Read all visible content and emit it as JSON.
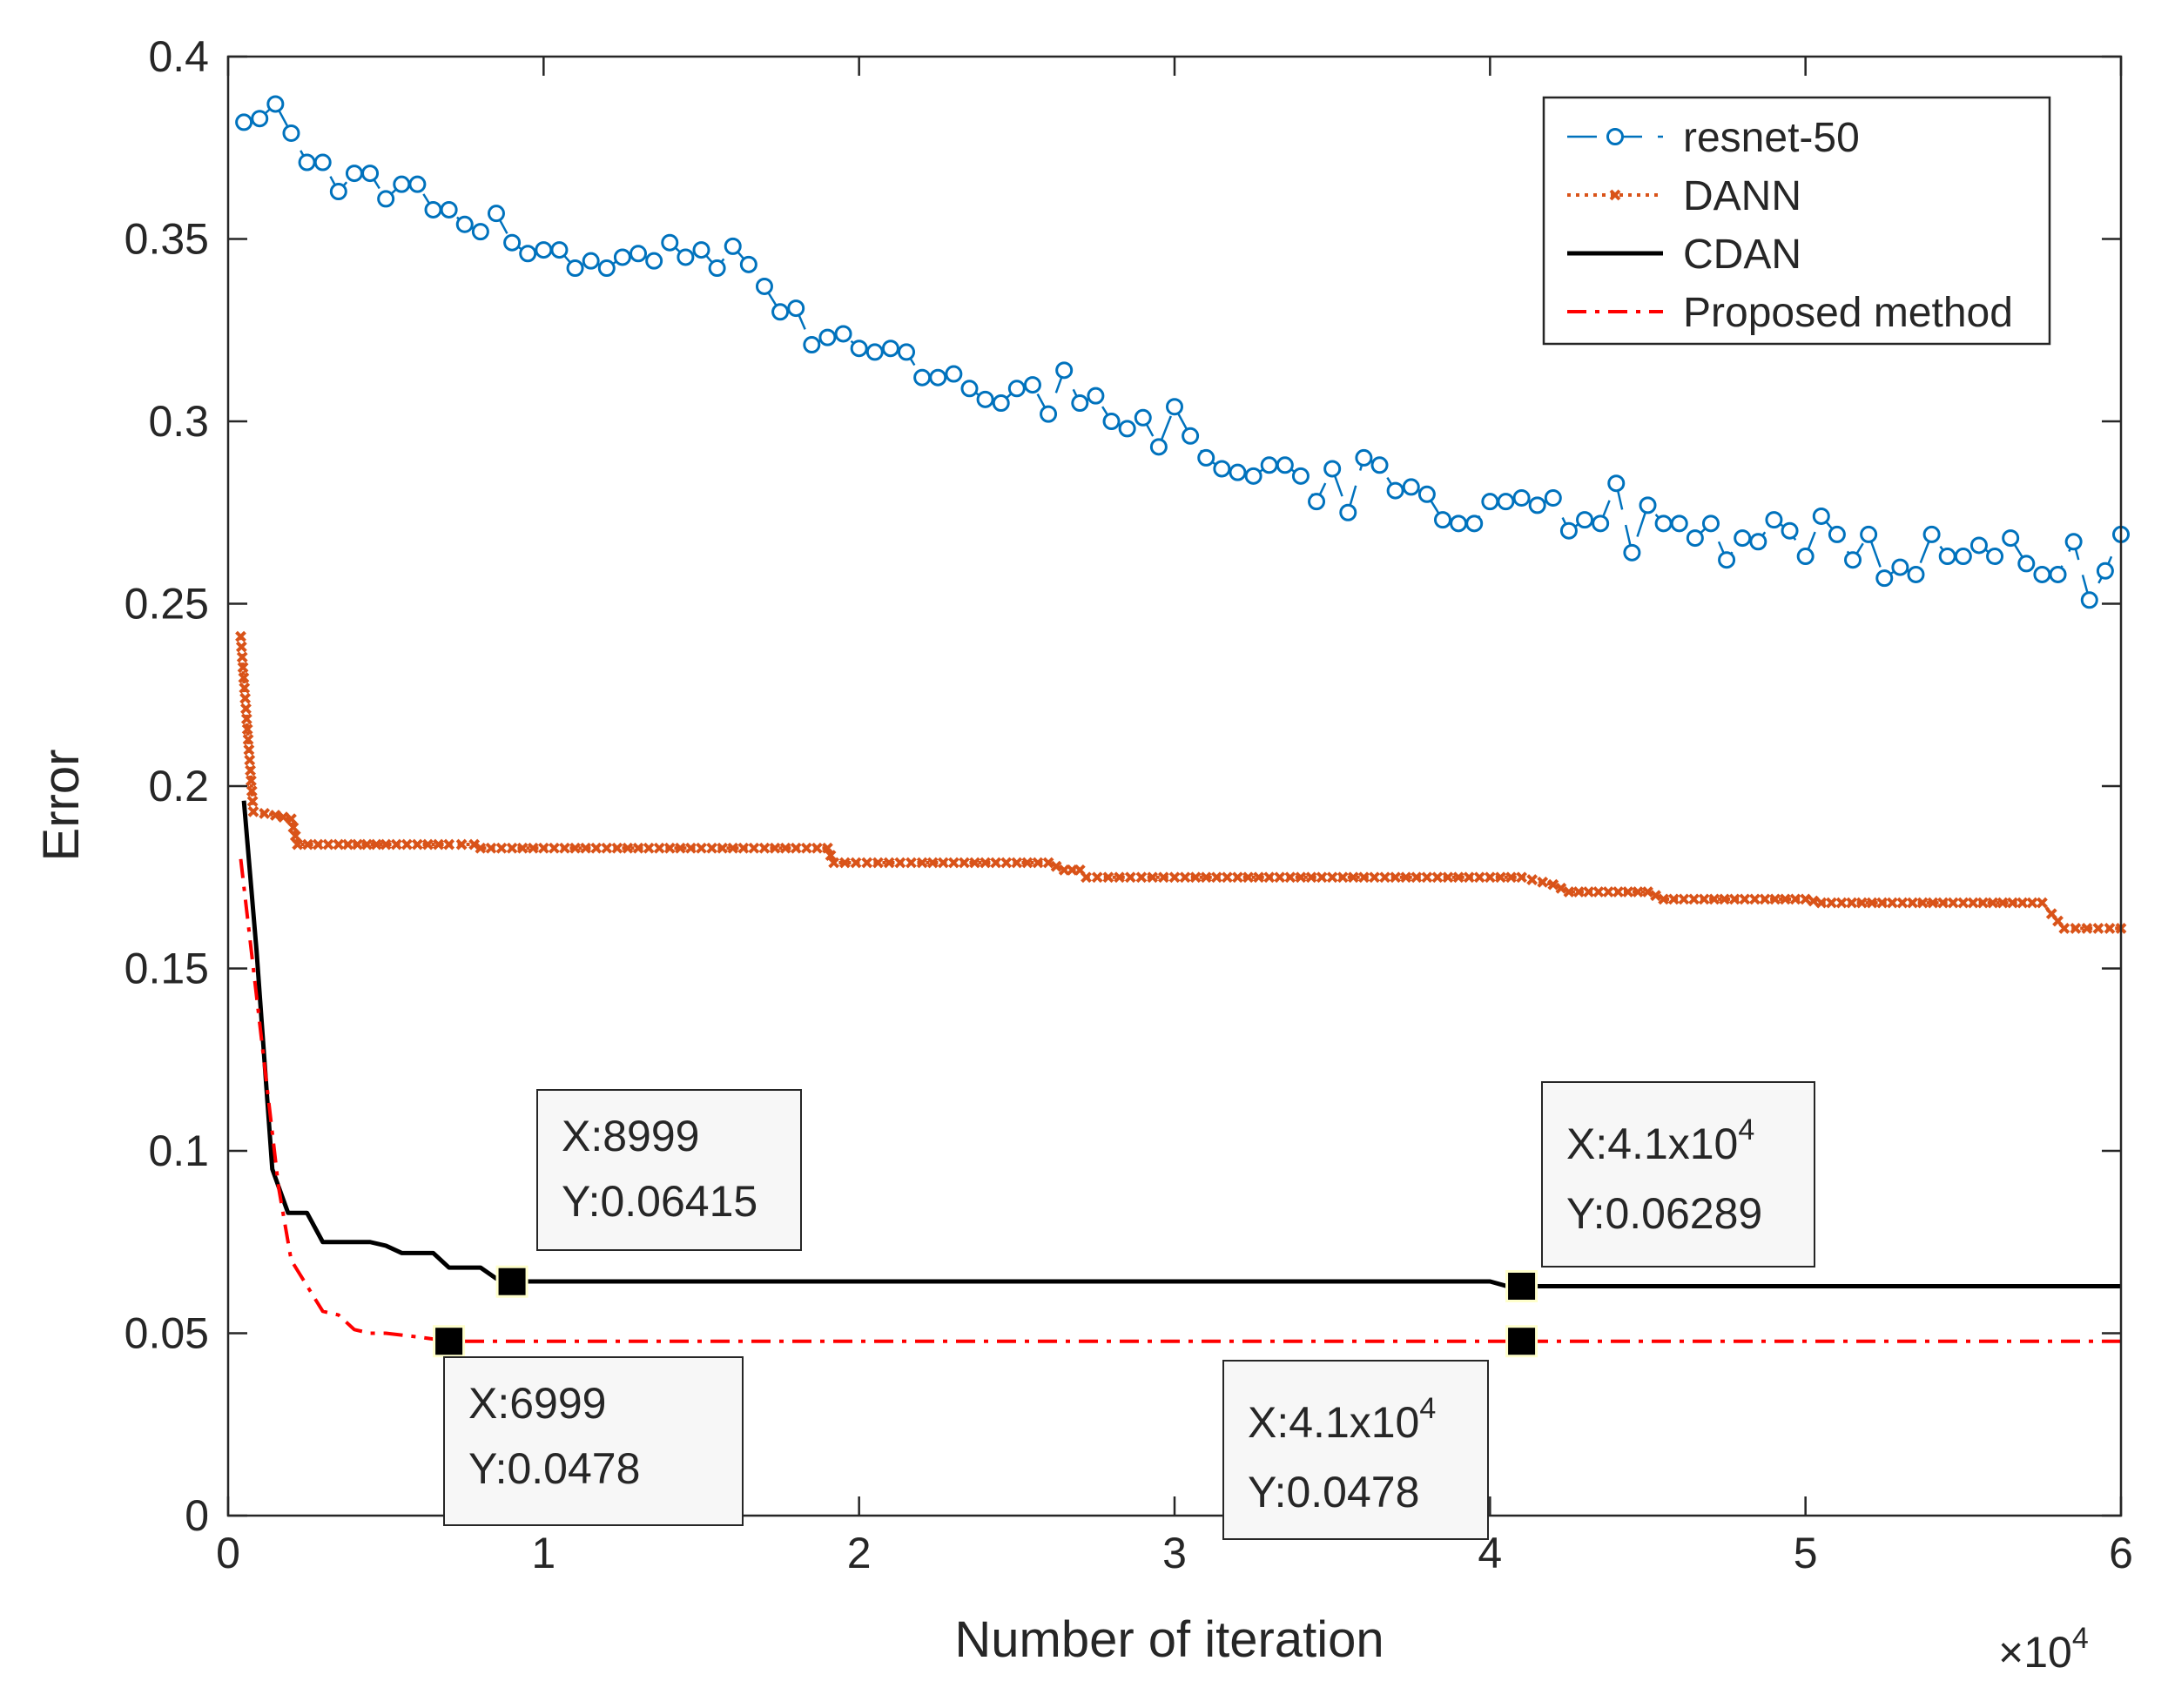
{
  "chart_data": {
    "type": "line",
    "title": "",
    "xlabel": "Number of iteration",
    "ylabel": "Error",
    "x_multiplier": "×10",
    "x_multiplier_exp": "4",
    "xlim": [
      0,
      6
    ],
    "ylim": [
      0,
      0.4
    ],
    "x_ticks": [
      0,
      1,
      2,
      3,
      4,
      5,
      6
    ],
    "x_tick_labels": [
      "0",
      "1",
      "2",
      "3",
      "4",
      "5",
      "6"
    ],
    "y_ticks": [
      0,
      0.05,
      0.1,
      0.15,
      0.2,
      0.25,
      0.3,
      0.35,
      0.4
    ],
    "y_tick_labels": [
      "0",
      "0.05",
      "0.1",
      "0.15",
      "0.2",
      "0.25",
      "0.3",
      "0.35",
      "0.4"
    ],
    "grid": false,
    "legend_position": "top-right",
    "series": [
      {
        "name": "resnet-50",
        "color": "#0072BD",
        "style": "dashed-circle",
        "x": [
          0.05,
          0.1,
          0.15,
          0.2,
          0.25,
          0.3,
          0.35,
          0.4,
          0.45,
          0.5,
          0.55,
          0.6,
          0.65,
          0.7,
          0.75,
          0.8,
          0.85,
          0.9,
          0.95,
          1.0,
          1.05,
          1.1,
          1.15,
          1.2,
          1.25,
          1.3,
          1.35,
          1.4,
          1.45,
          1.5,
          1.55,
          1.6,
          1.65,
          1.7,
          1.75,
          1.8,
          1.85,
          1.9,
          1.95,
          2.0,
          2.05,
          2.1,
          2.15,
          2.2,
          2.25,
          2.3,
          2.35,
          2.4,
          2.45,
          2.5,
          2.55,
          2.6,
          2.65,
          2.7,
          2.75,
          2.8,
          2.85,
          2.9,
          2.95,
          3.0,
          3.05,
          3.1,
          3.15,
          3.2,
          3.25,
          3.3,
          3.35,
          3.4,
          3.45,
          3.5,
          3.55,
          3.6,
          3.65,
          3.7,
          3.75,
          3.8,
          3.85,
          3.9,
          3.95,
          4.0,
          4.05,
          4.1,
          4.15,
          4.2,
          4.25,
          4.3,
          4.35,
          4.4,
          4.45,
          4.5,
          4.55,
          4.6,
          4.65,
          4.7,
          4.75,
          4.8,
          4.85,
          4.9,
          4.95,
          5.0,
          5.05,
          5.1,
          5.15,
          5.2,
          5.25,
          5.3,
          5.35,
          5.4,
          5.45,
          5.5,
          5.55,
          5.6,
          5.65,
          5.7,
          5.75,
          5.8,
          5.85,
          5.9,
          5.95,
          6.0
        ],
        "values": [
          0.382,
          0.383,
          0.387,
          0.379,
          0.371,
          0.371,
          0.363,
          0.368,
          0.368,
          0.361,
          0.365,
          0.365,
          0.358,
          0.358,
          0.354,
          0.352,
          0.357,
          0.349,
          0.346,
          0.347,
          0.347,
          0.342,
          0.344,
          0.342,
          0.345,
          0.346,
          0.344,
          0.349,
          0.345,
          0.347,
          0.342,
          0.348,
          0.343,
          0.337,
          0.33,
          0.331,
          0.321,
          0.323,
          0.324,
          0.32,
          0.319,
          0.32,
          0.319,
          0.312,
          0.312,
          0.313,
          0.309,
          0.306,
          0.305,
          0.309,
          0.31,
          0.302,
          0.314,
          0.305,
          0.307,
          0.3,
          0.298,
          0.301,
          0.293,
          0.304,
          0.296,
          0.29,
          0.287,
          0.286,
          0.285,
          0.288,
          0.288,
          0.285,
          0.278,
          0.287,
          0.275,
          0.29,
          0.288,
          0.281,
          0.282,
          0.28,
          0.273,
          0.272,
          0.272,
          0.278,
          0.278,
          0.279,
          0.277,
          0.279,
          0.27,
          0.273,
          0.272,
          0.283,
          0.264,
          0.277,
          0.272,
          0.272,
          0.268,
          0.272,
          0.262,
          0.268,
          0.267,
          0.273,
          0.27,
          0.263,
          0.274,
          0.269,
          0.262,
          0.269,
          0.257,
          0.26,
          0.258,
          0.269,
          0.263,
          0.263,
          0.266,
          0.263,
          0.268,
          0.261,
          0.258,
          0.258,
          0.267,
          0.251,
          0.259,
          0.269
        ]
      },
      {
        "name": "DANN",
        "color": "#D95319",
        "style": "dotted-x",
        "x": [
          0.04,
          0.08,
          0.15,
          0.2,
          0.22,
          0.35,
          0.5,
          0.7,
          0.78,
          0.8,
          1.0,
          1.2,
          1.5,
          1.8,
          1.9,
          1.92,
          2.2,
          2.5,
          2.6,
          2.65,
          2.7,
          2.72,
          3.0,
          3.5,
          4.0,
          4.1,
          4.2,
          4.25,
          4.5,
          4.55,
          5.0,
          5.05,
          5.5,
          5.75,
          5.78,
          5.82,
          6.0
        ],
        "values": [
          0.241,
          0.193,
          0.192,
          0.191,
          0.184,
          0.184,
          0.184,
          0.184,
          0.184,
          0.183,
          0.183,
          0.183,
          0.183,
          0.183,
          0.183,
          0.179,
          0.179,
          0.179,
          0.179,
          0.177,
          0.177,
          0.175,
          0.175,
          0.175,
          0.175,
          0.175,
          0.173,
          0.171,
          0.171,
          0.169,
          0.169,
          0.168,
          0.168,
          0.168,
          0.165,
          0.161,
          0.161
        ]
      },
      {
        "name": "CDAN",
        "color": "#000000",
        "style": "solid",
        "x": [
          0.05,
          0.09,
          0.14,
          0.19,
          0.25,
          0.3,
          0.35,
          0.45,
          0.5,
          0.55,
          0.65,
          0.7,
          0.8,
          0.85,
          0.9,
          1.5,
          2.5,
          3.5,
          4.0,
          4.05,
          4.1,
          5.0,
          6.0
        ],
        "values": [
          0.196,
          0.155,
          0.095,
          0.083,
          0.083,
          0.075,
          0.075,
          0.075,
          0.074,
          0.072,
          0.072,
          0.068,
          0.068,
          0.065,
          0.0642,
          0.0642,
          0.0642,
          0.0642,
          0.0642,
          0.063,
          0.0629,
          0.0629,
          0.0629
        ]
      },
      {
        "name": "Proposed method",
        "color": "#FF0000",
        "style": "dashdot",
        "x": [
          0.04,
          0.08,
          0.12,
          0.16,
          0.2,
          0.25,
          0.3,
          0.35,
          0.4,
          0.45,
          0.5,
          0.6,
          0.7,
          1.0,
          2.0,
          3.0,
          4.0,
          4.1,
          5.0,
          6.0
        ],
        "values": [
          0.18,
          0.15,
          0.12,
          0.09,
          0.07,
          0.063,
          0.056,
          0.055,
          0.051,
          0.05,
          0.05,
          0.049,
          0.0478,
          0.0478,
          0.0478,
          0.0478,
          0.0478,
          0.0478,
          0.0478,
          0.0478
        ]
      }
    ],
    "annotations": [
      {
        "x": 0.8999,
        "y": 0.06415,
        "label_x": "X:8999",
        "label_y": "Y:0.06415"
      },
      {
        "x": 0.6999,
        "y": 0.0478,
        "label_x": "X:6999",
        "label_y": "Y:0.0478"
      },
      {
        "x": 4.1,
        "y": 0.06289,
        "label_x": "X:4.1x10",
        "label_x_exp": "4",
        "label_y": "Y:0.06289"
      },
      {
        "x": 4.1,
        "y": 0.0478,
        "label_x": "X:4.1x10",
        "label_x_exp": "4",
        "label_y": "Y:0.0478"
      }
    ]
  }
}
